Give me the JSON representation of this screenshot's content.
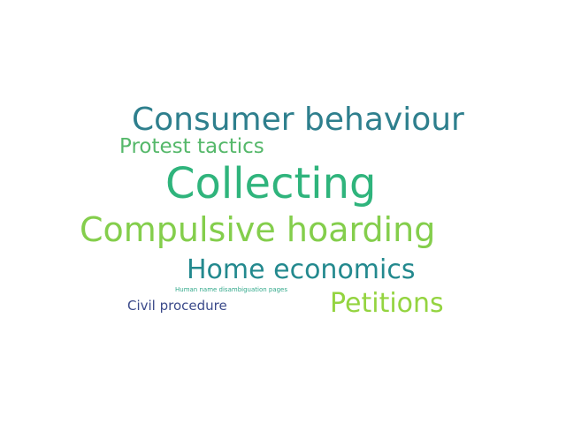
{
  "word_cloud": {
    "words": [
      {
        "text": "Consumer behaviour",
        "color": "#2e7f8d"
      },
      {
        "text": "Protest tactics",
        "color": "#55b86a"
      },
      {
        "text": "Collecting",
        "color": "#2fb47c"
      },
      {
        "text": "Compulsive hoarding",
        "color": "#84ce4c"
      },
      {
        "text": "Home economics",
        "color": "#23898e"
      },
      {
        "text": "Human name disambiguation pages",
        "color": "#31a88a"
      },
      {
        "text": "Petitions",
        "color": "#94d440"
      },
      {
        "text": "Civil procedure",
        "color": "#3b4a8a"
      }
    ]
  }
}
